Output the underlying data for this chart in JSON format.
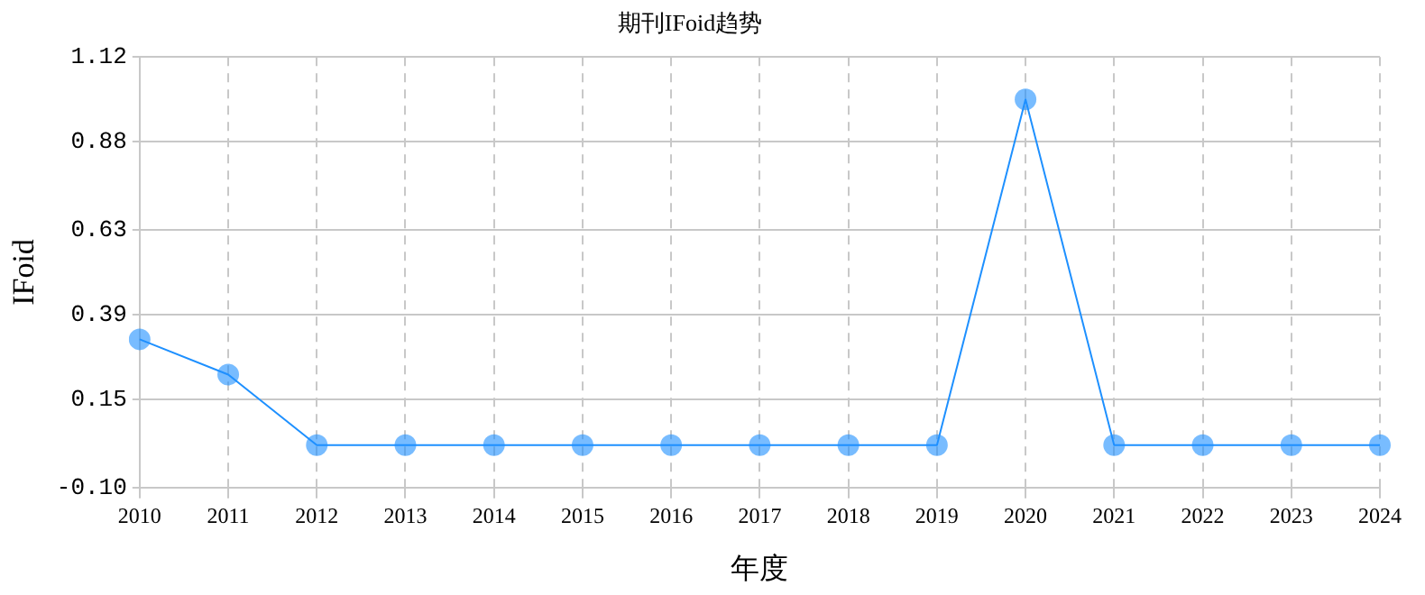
{
  "chart_data": {
    "type": "line",
    "title": "期刊IFoid趋势",
    "xlabel": "年度",
    "ylabel": "IFoid",
    "categories": [
      "2010",
      "2011",
      "2012",
      "2013",
      "2014",
      "2015",
      "2016",
      "2017",
      "2018",
      "2019",
      "2020",
      "2021",
      "2022",
      "2023",
      "2024"
    ],
    "series": [
      {
        "color": "#1e90ff",
        "values": [
          0.32,
          0.22,
          0.02,
          0.02,
          0.02,
          0.02,
          0.02,
          0.02,
          0.02,
          0.02,
          1.0,
          0.02,
          0.02,
          0.02,
          0.02
        ]
      }
    ],
    "ylim": [
      -0.1,
      1.12
    ],
    "yticks": [
      {
        "value": -0.1,
        "label": "-0.10"
      },
      0.15,
      0.39,
      0.63,
      0.88,
      1.12
    ],
    "grid": true,
    "legend": false,
    "marker": "circle",
    "line_style": "solid"
  }
}
